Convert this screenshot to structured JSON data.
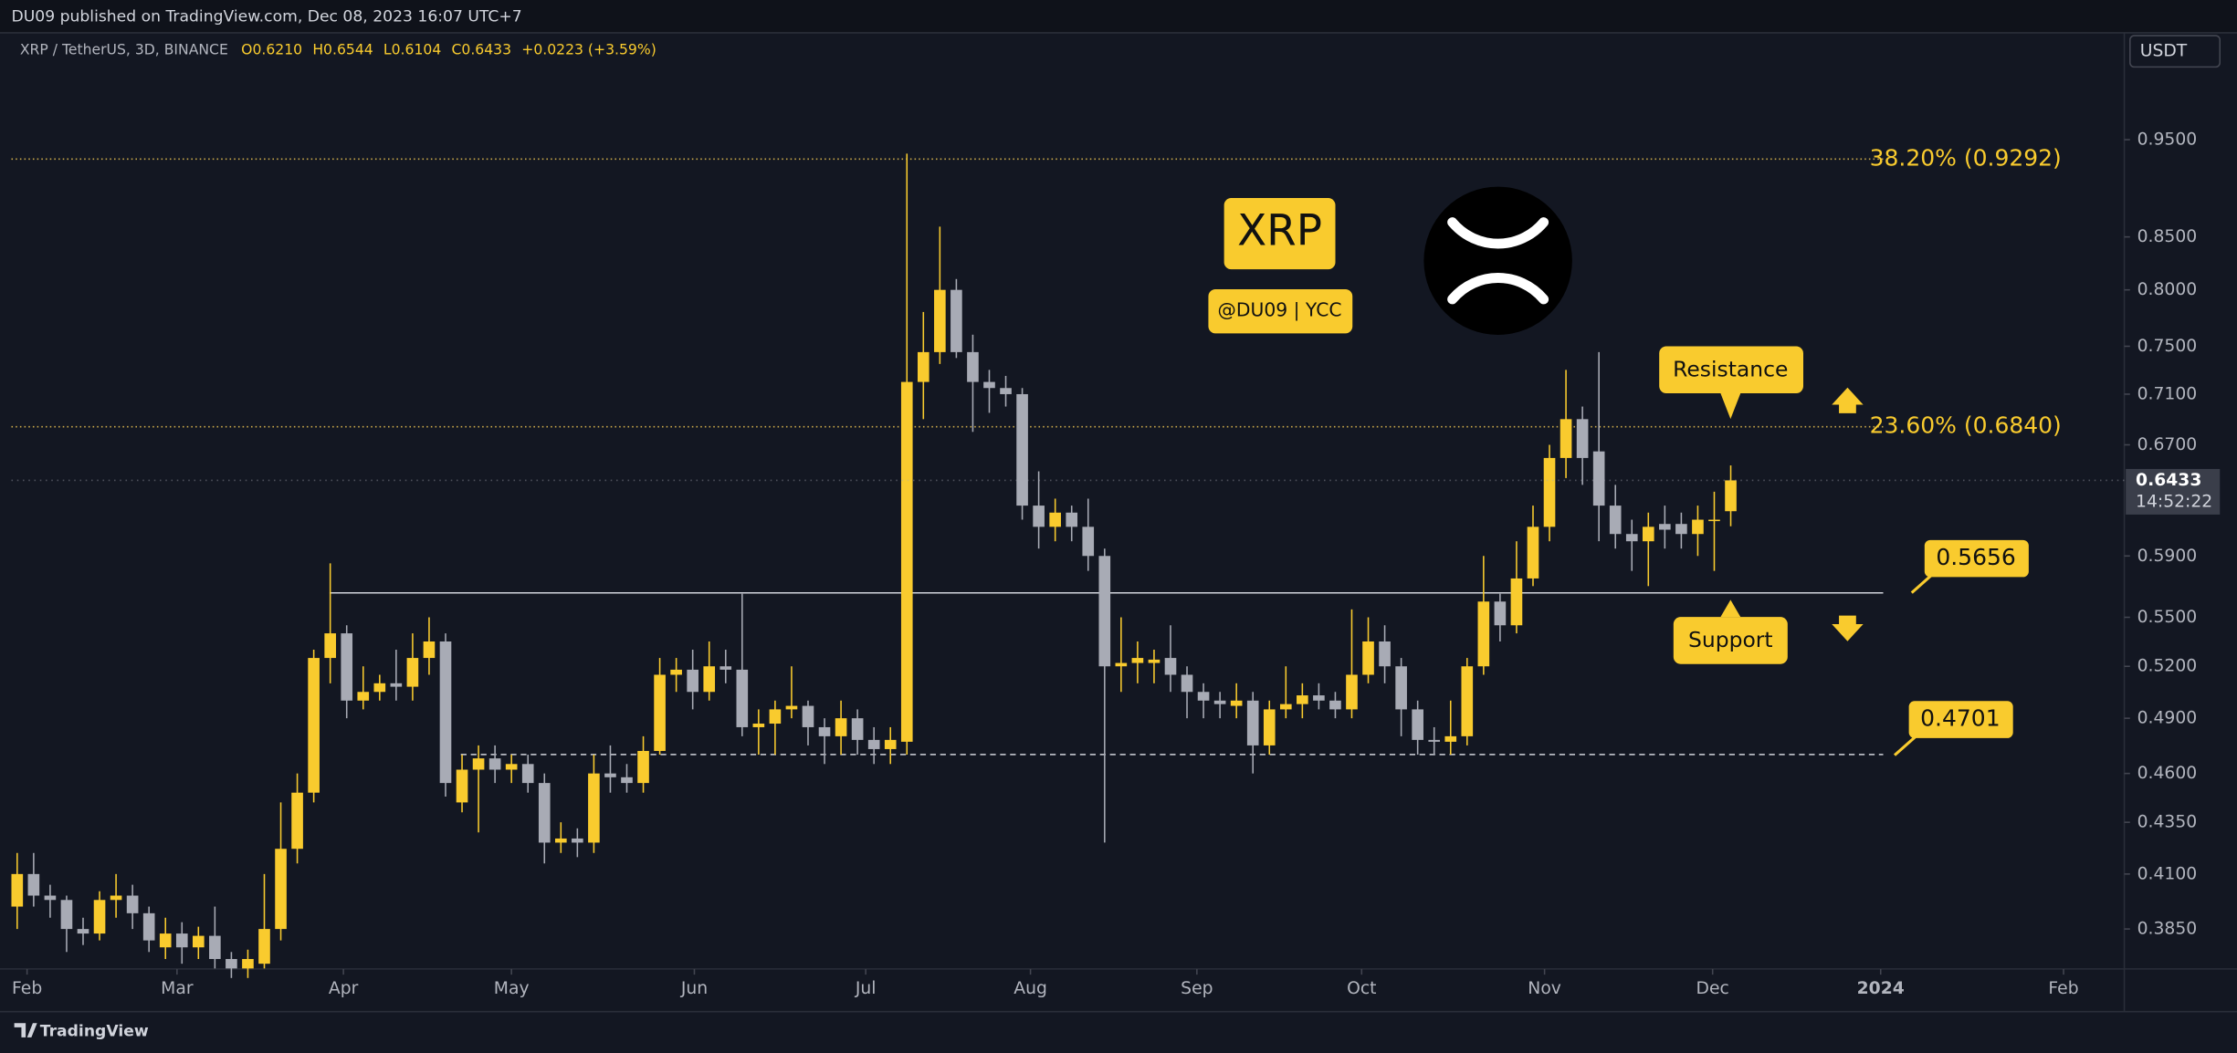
{
  "header": {
    "published": "DU09 published on TradingView.com, Dec 08, 2023 16:07 UTC+7",
    "symbol": "XRP / TetherUS, 3D, BINANCE",
    "ohlc": [
      "O0.6210",
      "H0.6544",
      "L0.6104",
      "C0.6433",
      "+0.0223 (+3.59%)"
    ],
    "currency": "USDT"
  },
  "footer": {
    "brand": "TradingView"
  },
  "chart_data": {
    "type": "candlestick",
    "log": true,
    "grid": false,
    "up_color": "#f9cb2e",
    "down_color": "#a8abb5",
    "ylim": [
      0.3678,
      1.0719
    ],
    "xlim": [
      -0.35,
      127.8
    ],
    "yticks": [
      {
        "value": 0.95,
        "label": "0.9500"
      },
      {
        "value": 0.85,
        "label": "0.8500"
      },
      {
        "value": 0.8,
        "label": "0.8000"
      },
      {
        "value": 0.75,
        "label": "0.7500"
      },
      {
        "value": 0.71,
        "label": "0.7100"
      },
      {
        "value": 0.67,
        "label": "0.6700"
      },
      {
        "value": 0.59,
        "label": "0.5900"
      },
      {
        "value": 0.55,
        "label": "0.5500"
      },
      {
        "value": 0.52,
        "label": "0.5200"
      },
      {
        "value": 0.49,
        "label": "0.4900"
      },
      {
        "value": 0.46,
        "label": "0.4600"
      },
      {
        "value": 0.435,
        "label": "0.4350"
      },
      {
        "value": 0.41,
        "label": "0.4100"
      },
      {
        "value": 0.385,
        "label": "0.3850"
      }
    ],
    "xticks": [
      {
        "value": 0.6,
        "label": "Feb"
      },
      {
        "value": 9.7,
        "label": "Mar"
      },
      {
        "value": 19.8,
        "label": "Apr"
      },
      {
        "value": 30.0,
        "label": "May"
      },
      {
        "value": 41.1,
        "label": "Jun"
      },
      {
        "value": 51.5,
        "label": "Jul"
      },
      {
        "value": 61.5,
        "label": "Aug"
      },
      {
        "value": 71.6,
        "label": "Sep"
      },
      {
        "value": 81.6,
        "label": "Oct"
      },
      {
        "value": 92.7,
        "label": "Nov"
      },
      {
        "value": 102.9,
        "label": "Dec"
      },
      {
        "value": 113.1,
        "label": "2024"
      },
      {
        "value": 124.2,
        "label": "Feb"
      }
    ],
    "open": [
      0.395,
      0.41,
      0.4,
      0.398,
      0.385,
      0.383,
      0.398,
      0.4,
      0.392,
      0.377,
      0.383,
      0.377,
      0.382,
      0.372,
      0.368,
      0.37,
      0.385,
      0.422,
      0.45,
      0.525,
      0.54,
      0.5,
      0.505,
      0.51,
      0.508,
      0.525,
      0.535,
      0.445,
      0.462,
      0.468,
      0.462,
      0.465,
      0.455,
      0.425,
      0.427,
      0.425,
      0.46,
      0.458,
      0.455,
      0.472,
      0.515,
      0.518,
      0.505,
      0.52,
      0.518,
      0.485,
      0.487,
      0.495,
      0.497,
      0.485,
      0.48,
      0.49,
      0.478,
      0.473,
      0.477,
      0.72,
      0.745,
      0.8,
      0.745,
      0.72,
      0.715,
      0.71,
      0.625,
      0.61,
      0.62,
      0.61,
      0.59,
      0.52,
      0.522,
      0.522,
      0.525,
      0.515,
      0.505,
      0.5,
      0.497,
      0.5,
      0.475,
      0.495,
      0.498,
      0.503,
      0.5,
      0.495,
      0.515,
      0.535,
      0.52,
      0.495,
      0.478,
      0.477,
      0.48,
      0.52,
      0.56,
      0.545,
      0.575,
      0.61,
      0.66,
      0.69,
      0.665,
      0.625,
      0.605,
      0.6,
      0.612,
      0.612,
      0.605,
      0.615,
      0.621
    ],
    "high": [
      0.42,
      0.42,
      0.405,
      0.4,
      0.39,
      0.402,
      0.41,
      0.405,
      0.395,
      0.39,
      0.388,
      0.386,
      0.395,
      0.375,
      0.376,
      0.41,
      0.445,
      0.46,
      0.53,
      0.585,
      0.545,
      0.52,
      0.515,
      0.53,
      0.54,
      0.55,
      0.54,
      0.47,
      0.475,
      0.475,
      0.47,
      0.47,
      0.46,
      0.435,
      0.432,
      0.47,
      0.475,
      0.465,
      0.48,
      0.525,
      0.525,
      0.53,
      0.535,
      0.53,
      0.565,
      0.495,
      0.5,
      0.52,
      0.5,
      0.49,
      0.5,
      0.495,
      0.485,
      0.485,
      0.935,
      0.78,
      0.86,
      0.81,
      0.76,
      0.73,
      0.725,
      0.715,
      0.65,
      0.63,
      0.625,
      0.63,
      0.595,
      0.55,
      0.535,
      0.53,
      0.545,
      0.52,
      0.51,
      0.505,
      0.51,
      0.505,
      0.5,
      0.52,
      0.51,
      0.51,
      0.505,
      0.555,
      0.55,
      0.545,
      0.525,
      0.5,
      0.485,
      0.5,
      0.525,
      0.59,
      0.565,
      0.6,
      0.625,
      0.67,
      0.73,
      0.7,
      0.745,
      0.64,
      0.615,
      0.62,
      0.625,
      0.62,
      0.625,
      0.635,
      0.6544
    ],
    "low": [
      0.385,
      0.395,
      0.39,
      0.375,
      0.378,
      0.38,
      0.39,
      0.385,
      0.375,
      0.372,
      0.37,
      0.372,
      0.368,
      0.364,
      0.364,
      0.368,
      0.38,
      0.415,
      0.445,
      0.51,
      0.49,
      0.495,
      0.5,
      0.5,
      0.5,
      0.515,
      0.448,
      0.44,
      0.43,
      0.455,
      0.455,
      0.45,
      0.415,
      0.42,
      0.418,
      0.42,
      0.45,
      0.45,
      0.45,
      0.47,
      0.505,
      0.495,
      0.5,
      0.51,
      0.48,
      0.47,
      0.47,
      0.49,
      0.475,
      0.465,
      0.47,
      0.47,
      0.465,
      0.465,
      0.47,
      0.69,
      0.735,
      0.74,
      0.68,
      0.695,
      0.7,
      0.615,
      0.595,
      0.6,
      0.6,
      0.58,
      0.425,
      0.505,
      0.51,
      0.51,
      0.505,
      0.49,
      0.49,
      0.49,
      0.49,
      0.46,
      0.47,
      0.49,
      0.49,
      0.495,
      0.49,
      0.49,
      0.51,
      0.51,
      0.48,
      0.47,
      0.47,
      0.47,
      0.475,
      0.515,
      0.535,
      0.54,
      0.57,
      0.6,
      0.645,
      0.64,
      0.6,
      0.595,
      0.58,
      0.57,
      0.595,
      0.595,
      0.59,
      0.58,
      0.6104
    ],
    "close": [
      0.41,
      0.4,
      0.398,
      0.385,
      0.383,
      0.398,
      0.4,
      0.392,
      0.38,
      0.383,
      0.377,
      0.382,
      0.372,
      0.368,
      0.372,
      0.385,
      0.422,
      0.45,
      0.525,
      0.54,
      0.5,
      0.505,
      0.51,
      0.508,
      0.525,
      0.535,
      0.455,
      0.462,
      0.468,
      0.462,
      0.465,
      0.455,
      0.425,
      0.427,
      0.425,
      0.46,
      0.458,
      0.455,
      0.472,
      0.515,
      0.518,
      0.505,
      0.52,
      0.518,
      0.485,
      0.487,
      0.495,
      0.497,
      0.485,
      0.48,
      0.49,
      0.478,
      0.473,
      0.478,
      0.72,
      0.745,
      0.8,
      0.745,
      0.72,
      0.715,
      0.71,
      0.625,
      0.61,
      0.62,
      0.61,
      0.59,
      0.52,
      0.522,
      0.525,
      0.524,
      0.515,
      0.505,
      0.5,
      0.498,
      0.5,
      0.475,
      0.495,
      0.498,
      0.503,
      0.5,
      0.495,
      0.515,
      0.535,
      0.52,
      0.495,
      0.478,
      0.477,
      0.48,
      0.52,
      0.56,
      0.545,
      0.575,
      0.61,
      0.66,
      0.69,
      0.66,
      0.625,
      0.605,
      0.6,
      0.61,
      0.608,
      0.605,
      0.615,
      0.615,
      0.6433
    ],
    "fib_levels": [
      {
        "label": "38.20% (0.9292)",
        "value": 0.9292
      },
      {
        "label": "23.60% (0.6840)",
        "value": 0.684
      }
    ],
    "support": {
      "value": 0.5656
    },
    "low_support": {
      "value": 0.4701
    },
    "last_price": 0.6433,
    "countdown": "14:52:22",
    "annotations": {
      "resistance": "Resistance",
      "support": "Support",
      "coin": "XRP",
      "author": "@DU09 | YCC"
    }
  }
}
